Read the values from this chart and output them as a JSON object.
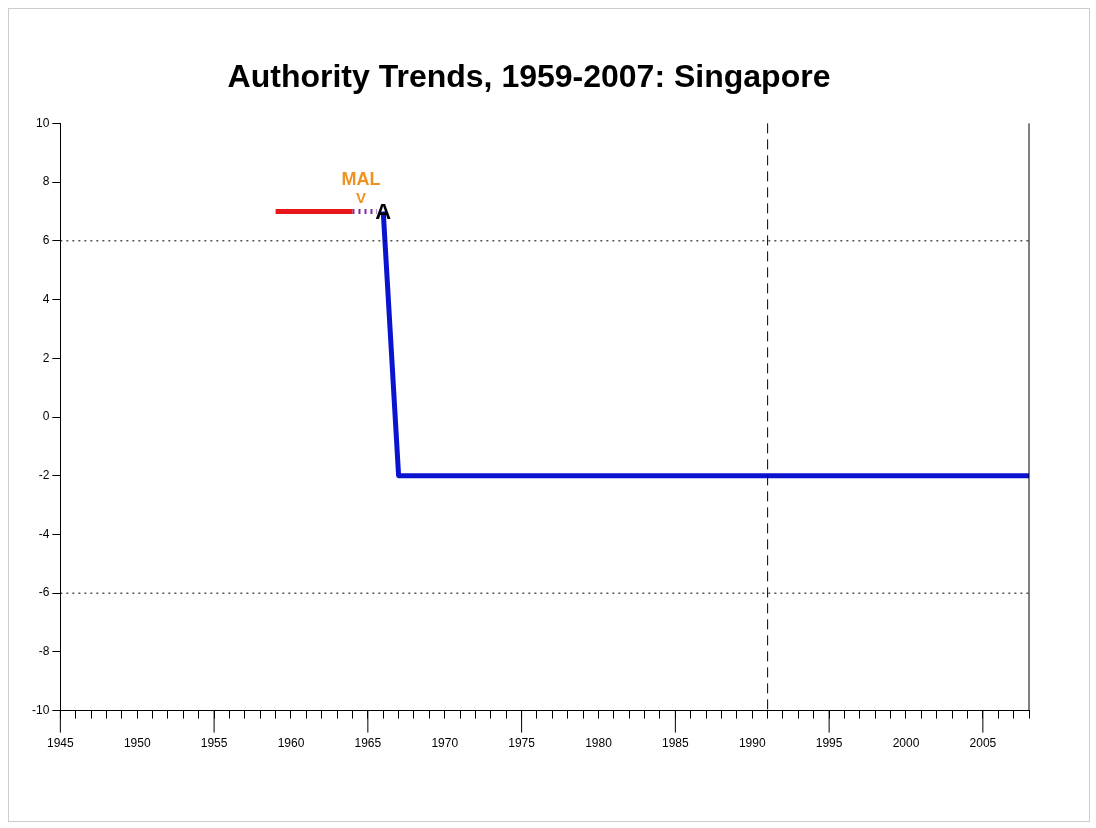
{
  "chart_data": {
    "type": "line",
    "title": "Authority Trends, 1959-2007: Singapore",
    "series": [
      {
        "color": "#e8151b",
        "x": [
          1959,
          1964
        ],
        "values": [
          7,
          7
        ],
        "line_style": "solid"
      },
      {
        "color": "#7b2a9c",
        "x": [
          1964,
          1965.6
        ],
        "values": [
          7,
          7
        ],
        "line_style": "dotted"
      },
      {
        "color": "#0a14d0",
        "x": [
          1966,
          1967,
          2008
        ],
        "values": [
          7,
          -2,
          -2
        ],
        "line_style": "solid"
      }
    ],
    "xlim": [
      1945,
      2008
    ],
    "xticks": [
      1945,
      {
        "value": 1946,
        "label": null
      },
      {
        "value": 1947,
        "label": null
      },
      {
        "value": 1948,
        "label": null
      },
      {
        "value": 1949,
        "label": null
      },
      1950,
      {
        "value": 1951,
        "label": null
      },
      {
        "value": 1952,
        "label": null
      },
      {
        "value": 1953,
        "label": null
      },
      {
        "value": 1954,
        "label": null
      },
      1955,
      {
        "value": 1956,
        "label": null
      },
      {
        "value": 1957,
        "label": null
      },
      {
        "value": 1958,
        "label": null
      },
      {
        "value": 1959,
        "label": null
      },
      1960,
      {
        "value": 1961,
        "label": null
      },
      {
        "value": 1962,
        "label": null
      },
      {
        "value": 1963,
        "label": null
      },
      {
        "value": 1964,
        "label": null
      },
      1965,
      {
        "value": 1966,
        "label": null
      },
      {
        "value": 1967,
        "label": null
      },
      {
        "value": 1968,
        "label": null
      },
      {
        "value": 1969,
        "label": null
      },
      1970,
      {
        "value": 1971,
        "label": null
      },
      {
        "value": 1972,
        "label": null
      },
      {
        "value": 1973,
        "label": null
      },
      {
        "value": 1974,
        "label": null
      },
      1975,
      {
        "value": 1976,
        "label": null
      },
      {
        "value": 1977,
        "label": null
      },
      {
        "value": 1978,
        "label": null
      },
      {
        "value": 1979,
        "label": null
      },
      1980,
      {
        "value": 1981,
        "label": null
      },
      {
        "value": 1982,
        "label": null
      },
      {
        "value": 1983,
        "label": null
      },
      {
        "value": 1984,
        "label": null
      },
      1985,
      {
        "value": 1986,
        "label": null
      },
      {
        "value": 1987,
        "label": null
      },
      {
        "value": 1988,
        "label": null
      },
      {
        "value": 1989,
        "label": null
      },
      1990,
      {
        "value": 1991,
        "label": null
      },
      {
        "value": 1992,
        "label": null
      },
      {
        "value": 1993,
        "label": null
      },
      {
        "value": 1994,
        "label": null
      },
      1995,
      {
        "value": 1996,
        "label": null
      },
      {
        "value": 1997,
        "label": null
      },
      {
        "value": 1998,
        "label": null
      },
      {
        "value": 1999,
        "label": null
      },
      2000,
      {
        "value": 2001,
        "label": null
      },
      {
        "value": 2002,
        "label": null
      },
      {
        "value": 2003,
        "label": null
      },
      {
        "value": 2004,
        "label": null
      },
      2005,
      {
        "value": 2006,
        "label": null
      },
      {
        "value": 2007,
        "label": null
      },
      {
        "value": 2008,
        "label": null
      }
    ],
    "ylim": [
      -10,
      10
    ],
    "yticks": [
      -10,
      -8,
      -6,
      -4,
      -2,
      0,
      2,
      4,
      6,
      8,
      10
    ],
    "ref_lines": [
      {
        "axis": "y",
        "value": 6,
        "line_style": "dotted",
        "color": "#000000"
      },
      {
        "axis": "y",
        "value": -6,
        "line_style": "dotted",
        "color": "#000000"
      },
      {
        "axis": "x",
        "value": 1991,
        "line_style": "dashed",
        "color": "#000000"
      }
    ],
    "annotations": [
      "MAL",
      "V",
      {
        "text": "A",
        "x": 1966,
        "y": 7
      }
    ],
    "marker": "none",
    "grid": false,
    "legend": false
  }
}
